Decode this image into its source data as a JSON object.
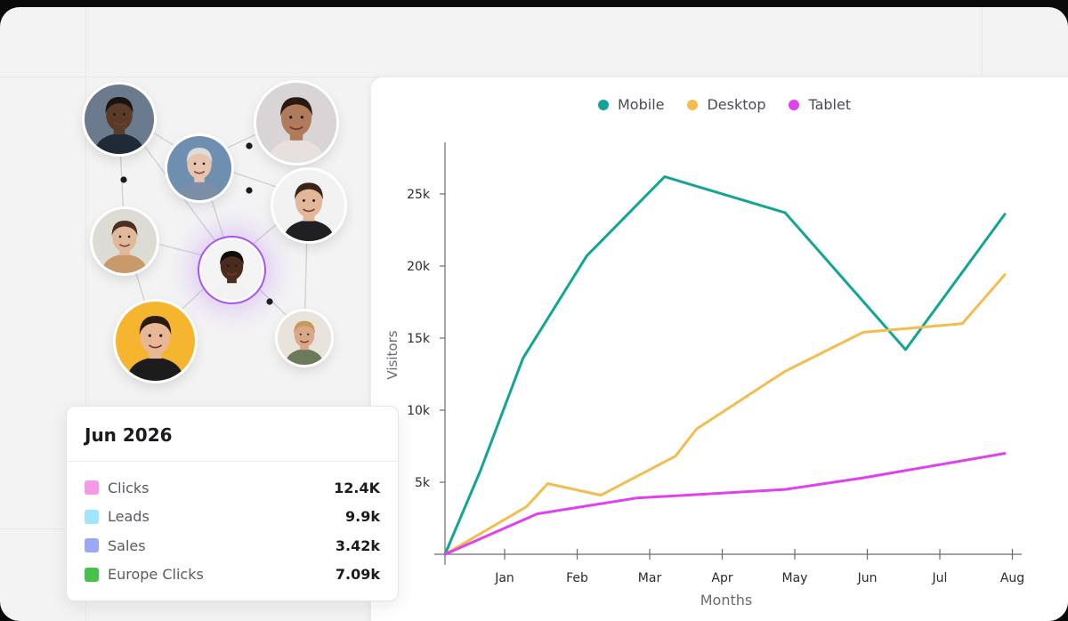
{
  "network": {
    "avatars": [
      {
        "name": "avatar-man-dark-suit",
        "bg": "#6b7a8c",
        "skin": "#5a3a28",
        "hair": "#1a1410",
        "shirt": "#1f2a36"
      },
      {
        "name": "avatar-woman-curly",
        "bg": "#d9d4d6",
        "skin": "#b07a5c",
        "hair": "#2b1a12",
        "shirt": "#e8e0dc"
      },
      {
        "name": "avatar-older-woman",
        "bg": "#6f8fb0",
        "skin": "#e8c4ae",
        "hair": "#dcdcdc",
        "shirt": "#7a8ea8"
      },
      {
        "name": "avatar-man-smiling",
        "bg": "#f2f2f2",
        "skin": "#e2b79a",
        "hair": "#3a2418",
        "shirt": "#1f1f24"
      },
      {
        "name": "avatar-woman-short-hair",
        "bg": "#dcdcd4",
        "skin": "#e0b89a",
        "hair": "#4a3020",
        "shirt": "#c89a6a"
      },
      {
        "name": "avatar-center-man",
        "bg": "#f4f4f4",
        "skin": "#4a2c1c",
        "hair": "#120c08",
        "shirt": "#f2f2f2"
      },
      {
        "name": "avatar-man-glasses-yellow",
        "bg": "#f5b52e",
        "skin": "#e8b896",
        "hair": "#2a1a10",
        "shirt": "#1c1c1c"
      },
      {
        "name": "avatar-woman-blonde",
        "bg": "#e8e4dc",
        "skin": "#d8a888",
        "hair": "#c89a5a",
        "shirt": "#6a7a5a"
      }
    ]
  },
  "chart_data": {
    "type": "line",
    "x": [
      "Jan",
      "Feb",
      "Mar",
      "Apr",
      "May",
      "Jun",
      "Jul",
      "Aug"
    ],
    "xlabel": "Months",
    "ylabel": "Visitors",
    "ylim": [
      0,
      30000
    ],
    "yticks": [
      5000,
      10000,
      15000,
      20000,
      25000
    ],
    "ytick_labels": [
      "5k",
      "10k",
      "15k",
      "20k",
      "25k"
    ],
    "legend_position": "top-center",
    "series": [
      {
        "name": "Mobile",
        "color": "#12a594",
        "points": [
          [
            0,
            0
          ],
          [
            0.5,
            5800
          ],
          [
            1.1,
            13600
          ],
          [
            2.0,
            20700
          ],
          [
            3.1,
            26200
          ],
          [
            4.8,
            23700
          ],
          [
            6.5,
            14200
          ],
          [
            7.9,
            23600
          ]
        ]
      },
      {
        "name": "Desktop",
        "color": "#f2bd4e",
        "points": [
          [
            0,
            0
          ],
          [
            1.15,
            3300
          ],
          [
            1.45,
            4900
          ],
          [
            2.2,
            4100
          ],
          [
            3.25,
            6800
          ],
          [
            3.55,
            8700
          ],
          [
            4.8,
            12700
          ],
          [
            5.9,
            15400
          ],
          [
            7.3,
            16000
          ],
          [
            7.9,
            19400
          ]
        ]
      },
      {
        "name": "Tablet",
        "color": "#e040ee",
        "points": [
          [
            0,
            0
          ],
          [
            1.3,
            2800
          ],
          [
            2.7,
            3900
          ],
          [
            4.8,
            4500
          ],
          [
            5.9,
            5300
          ],
          [
            7.9,
            7000
          ]
        ]
      }
    ]
  },
  "stats": {
    "title": "Jun 2026",
    "rows": [
      {
        "label": "Clicks",
        "value": "12.4K",
        "color": "#f59ae6"
      },
      {
        "label": "Leads",
        "value": "9.9k",
        "color": "#9ee6fb"
      },
      {
        "label": "Sales",
        "value": "3.42k",
        "color": "#9aa8f5"
      },
      {
        "label": "Europe Clicks",
        "value": "7.09k",
        "color": "#46c24c"
      }
    ]
  }
}
